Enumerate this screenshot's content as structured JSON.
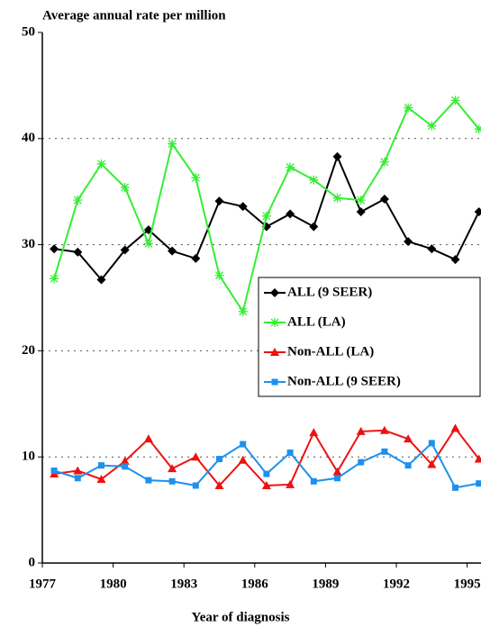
{
  "chart_data": {
    "type": "line",
    "title": "Average annual rate per million",
    "x_label": "Year of diagnosis",
    "x": [
      1977.5,
      1978.5,
      1979.5,
      1980.5,
      1981.5,
      1982.5,
      1983.5,
      1984.5,
      1985.5,
      1986.5,
      1987.5,
      1988.5,
      1989.5,
      1990.5,
      1991.5,
      1992.5,
      1993.5,
      1994.5,
      1995.5
    ],
    "series": [
      {
        "name": "ALL (9 SEER)",
        "color": "#000000",
        "marker": "diamond",
        "values": [
          29.6,
          29.3,
          26.7,
          29.5,
          31.4,
          29.4,
          28.7,
          34.1,
          33.6,
          31.7,
          32.9,
          31.7,
          38.3,
          33.1,
          34.3,
          30.3,
          29.6,
          28.6,
          33.1
        ]
      },
      {
        "name": "ALL (LA)",
        "color": "#33ee33",
        "marker": "star",
        "values": [
          26.8,
          34.2,
          37.6,
          35.4,
          30.1,
          39.5,
          36.3,
          27.1,
          23.7,
          32.7,
          37.3,
          36.1,
          34.4,
          34.2,
          37.8,
          42.9,
          41.2,
          43.6,
          40.9
        ]
      },
      {
        "name": "Non-ALL (LA)",
        "color": "#ee1111",
        "marker": "triangle",
        "values": [
          8.4,
          8.7,
          7.9,
          9.6,
          11.7,
          8.9,
          10.0,
          7.3,
          9.7,
          7.3,
          7.4,
          12.3,
          8.6,
          12.4,
          12.5,
          11.7,
          9.3,
          12.7,
          9.8
        ]
      },
      {
        "name": "Non-ALL (9 SEER)",
        "color": "#1e90ee",
        "marker": "square",
        "values": [
          8.7,
          8.0,
          9.2,
          9.1,
          7.8,
          7.7,
          7.3,
          9.8,
          11.2,
          8.4,
          10.4,
          7.7,
          8.0,
          9.5,
          10.5,
          9.2,
          11.3,
          7.1,
          7.5
        ]
      }
    ],
    "xlim": [
      1977,
      1995.5
    ],
    "xticks": [
      1977,
      1980,
      1983,
      1986,
      1989,
      1992,
      1995
    ],
    "ylim": [
      0,
      50
    ],
    "yticks": [
      0,
      10,
      20,
      30,
      40,
      50
    ],
    "grid": true,
    "legend": "right"
  }
}
